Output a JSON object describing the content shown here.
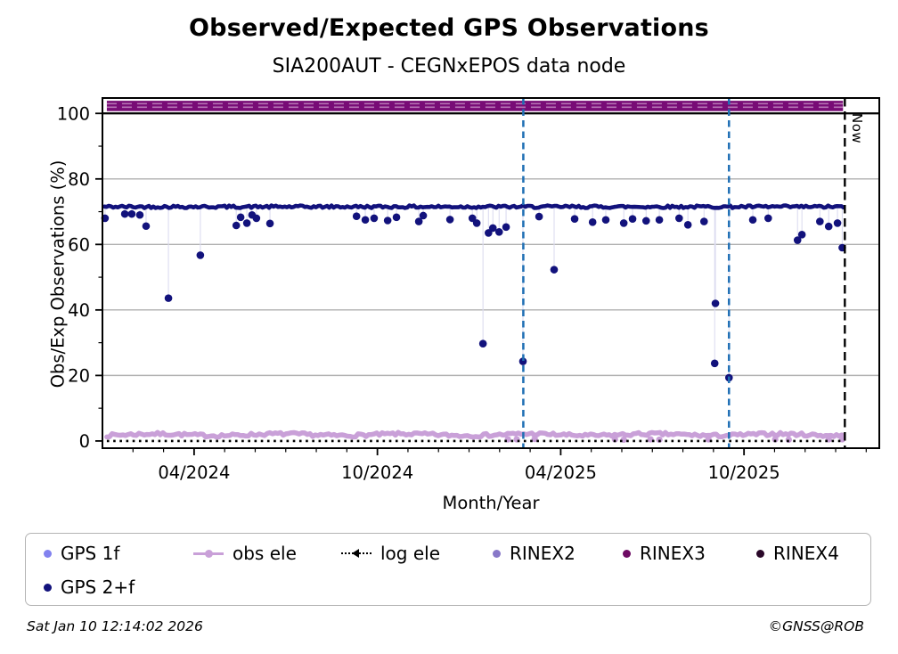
{
  "chart_data": {
    "type": "line",
    "title": "Observed/Expected GPS Observations",
    "subtitle": "SIA200AUT - CEGNxEPOS data node",
    "xlabel": "Month/Year",
    "ylabel": "Obs/Exp Observations (%)",
    "xlim": [
      2024.0,
      2026.119
    ],
    "ylim": [
      -2.2,
      104.7
    ],
    "grid": "horizontal-major-only",
    "y_ticks": [
      {
        "pos": 0,
        "label": "0"
      },
      {
        "pos": 20,
        "label": "20"
      },
      {
        "pos": 40,
        "label": "40"
      },
      {
        "pos": 60,
        "label": "60"
      },
      {
        "pos": 80,
        "label": "80"
      },
      {
        "pos": 100,
        "label": "100"
      }
    ],
    "y_minor_ticks": [
      10,
      30,
      50,
      70,
      90
    ],
    "x_ticks": [
      {
        "pos": 2024.25,
        "label": "04/2024"
      },
      {
        "pos": 2024.75,
        "label": "10/2024"
      },
      {
        "pos": 2025.25,
        "label": "04/2025"
      },
      {
        "pos": 2025.75,
        "label": "10/2025"
      }
    ],
    "x_minor_tick_step_months": 1,
    "reference_line": {
      "y": 100,
      "color": "#000000"
    },
    "series": [
      {
        "name": "RINEX2+RINEX3+RINEX4 overlapping band",
        "type": "band",
        "x_start": 2024.012,
        "x_end": 2026.02,
        "band_low": 100.7,
        "band_high": 103.85,
        "value": 102.2,
        "color": "#780c76"
      },
      {
        "name": "GPS 2+f",
        "type": "noisy-line",
        "base_value": 71.5,
        "jitter": 0.8,
        "x_start": 2024.005,
        "x_end": 2026.025,
        "color": "#12127c",
        "outliers": [
          [
            2024.007,
            68.0
          ],
          [
            2024.061,
            69.3
          ],
          [
            2024.08,
            69.3
          ],
          [
            2024.102,
            69.0
          ],
          [
            2024.119,
            65.6
          ],
          [
            2024.18,
            43.6
          ],
          [
            2024.267,
            56.7
          ],
          [
            2024.365,
            65.8
          ],
          [
            2024.377,
            68.3
          ],
          [
            2024.394,
            66.5
          ],
          [
            2024.408,
            69.0
          ],
          [
            2024.42,
            68.0
          ],
          [
            2024.457,
            66.4
          ],
          [
            2024.693,
            68.6
          ],
          [
            2024.717,
            67.5
          ],
          [
            2024.741,
            68.0
          ],
          [
            2024.778,
            67.3
          ],
          [
            2024.802,
            68.3
          ],
          [
            2024.863,
            67.0
          ],
          [
            2024.875,
            68.8
          ],
          [
            2024.948,
            67.6
          ],
          [
            2025.009,
            68.0
          ],
          [
            2025.021,
            66.5
          ],
          [
            2025.038,
            29.7
          ],
          [
            2025.053,
            63.5
          ],
          [
            2025.065,
            65.0
          ],
          [
            2025.082,
            63.8
          ],
          [
            2025.101,
            65.3
          ],
          [
            2025.147,
            24.3
          ],
          [
            2025.191,
            68.5
          ],
          [
            2025.232,
            52.3
          ],
          [
            2025.288,
            67.8
          ],
          [
            2025.337,
            66.8
          ],
          [
            2025.373,
            67.5
          ],
          [
            2025.422,
            66.5
          ],
          [
            2025.446,
            67.8
          ],
          [
            2025.483,
            67.2
          ],
          [
            2025.519,
            67.5
          ],
          [
            2025.573,
            68.0
          ],
          [
            2025.597,
            66.0
          ],
          [
            2025.641,
            67.0
          ],
          [
            2025.67,
            23.7
          ],
          [
            2025.672,
            42.0
          ],
          [
            2025.709,
            19.3
          ],
          [
            2025.774,
            67.5
          ],
          [
            2025.816,
            68.0
          ],
          [
            2025.896,
            61.3
          ],
          [
            2025.908,
            63.0
          ],
          [
            2025.957,
            67.0
          ],
          [
            2025.981,
            65.5
          ],
          [
            2026.005,
            66.5
          ],
          [
            2026.018,
            59.0
          ]
        ]
      },
      {
        "name": "obs ele",
        "type": "noisy-line",
        "base_value": 1.9,
        "jitter": 1.0,
        "x_start": 2024.012,
        "x_end": 2026.02,
        "color": "#c9a0d8",
        "low_points": [
          [
            2025.106,
            0.5
          ],
          [
            2025.13,
            0.5
          ],
          [
            2025.179,
            0.6
          ],
          [
            2025.398,
            0.5
          ],
          [
            2025.422,
            0.4
          ],
          [
            2025.495,
            0.5
          ],
          [
            2025.519,
            0.4
          ],
          [
            2025.653,
            0.5
          ],
          [
            2025.835,
            0.5
          ],
          [
            2025.872,
            0.4
          ],
          [
            2025.981,
            0.5
          ],
          [
            2026.018,
            0.5
          ]
        ]
      },
      {
        "name": "log ele",
        "type": "dotted-line",
        "value": 0.0,
        "x_start": 2024.012,
        "x_end": 2026.02,
        "color": "#000000"
      }
    ],
    "event_lines": [
      {
        "x": 2025.148,
        "style": "dashed",
        "color": "#1f6fb4"
      },
      {
        "x": 2025.709,
        "style": "dashed",
        "color": "#1f6fb4"
      }
    ],
    "now_line": {
      "x": 2026.025,
      "label": "Now",
      "style": "dashed",
      "color": "#000000"
    }
  },
  "legend": {
    "items": [
      {
        "label": "GPS 1f",
        "marker": "dot",
        "color": "#8282ef",
        "row": 1
      },
      {
        "label": "obs ele",
        "marker": "line-dot",
        "color": "#c9a0d8",
        "row": 1
      },
      {
        "label": "log ele",
        "marker": "dotted-arrow",
        "color": "#000000",
        "row": 1
      },
      {
        "label": "RINEX2",
        "marker": "dot",
        "color": "#8878c8",
        "row": 1
      },
      {
        "label": "RINEX3",
        "marker": "dot",
        "color": "#6e0b64",
        "row": 1
      },
      {
        "label": "RINEX4",
        "marker": "dot",
        "color": "#2a0829",
        "row": 1
      },
      {
        "label": "GPS 2+f",
        "marker": "dot",
        "color": "#12127c",
        "row": 2
      }
    ]
  },
  "footer": {
    "timestamp": "Sat Jan 10 12:14:02 2026",
    "credit": "©GNSS@ROB"
  },
  "colors": {
    "grid": "#b0b0b0",
    "frame": "#000000",
    "connector": "#dcdcf0",
    "background": "#ffffff"
  }
}
